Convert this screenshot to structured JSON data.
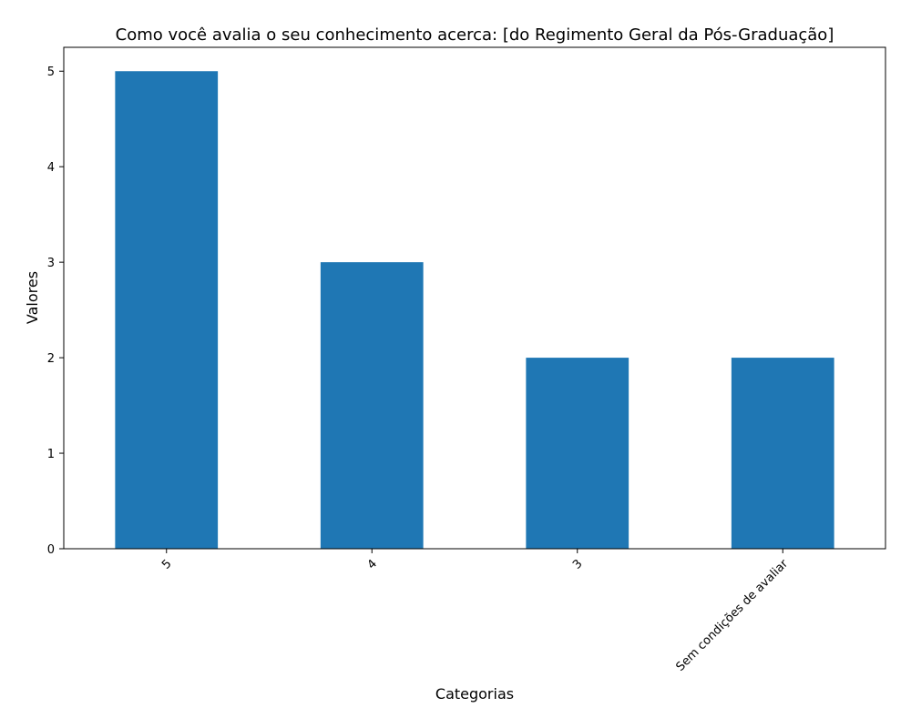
{
  "chart_data": {
    "type": "bar",
    "title": "Como você avalia o seu conhecimento acerca: [do Regimento Geral da Pós-Graduação]",
    "xlabel": "Categorias",
    "ylabel": "Valores",
    "categories": [
      "5",
      "4",
      "3",
      "Sem condições de avaliar"
    ],
    "values": [
      5,
      3,
      2,
      2
    ],
    "ylim": [
      0,
      5.25
    ],
    "yticks": [
      0,
      1,
      2,
      3,
      4,
      5
    ],
    "bar_color": "#1f77b4",
    "grid": false,
    "legend": "none"
  }
}
